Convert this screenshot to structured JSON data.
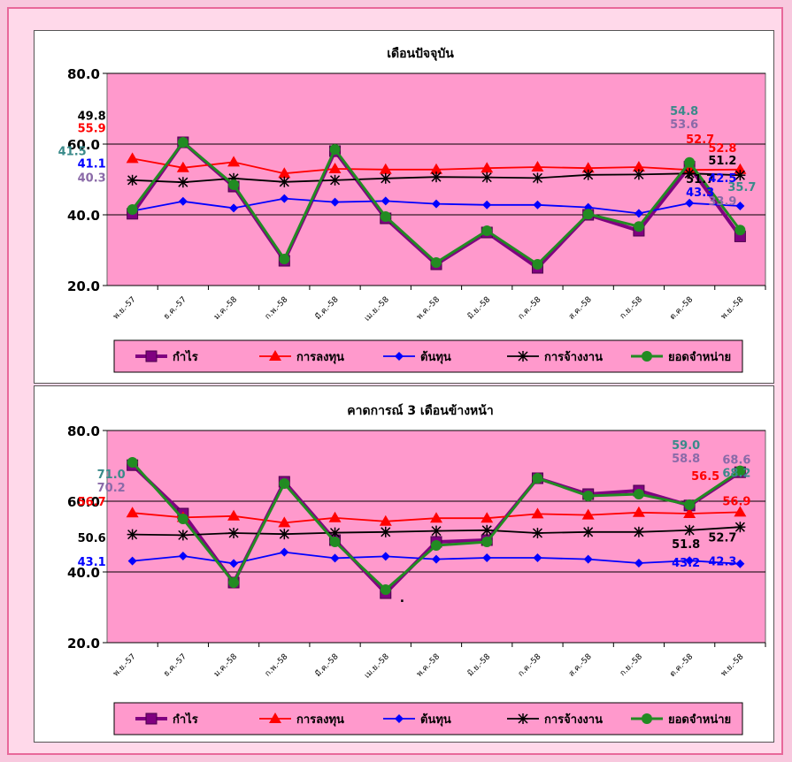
{
  "chart_data": [
    {
      "type": "line",
      "title": "เดือนปัจจุบัน",
      "categories": [
        "พ.ย.-57",
        "ธ.ค.-57",
        "ม.ค.-58",
        "ก.พ.-58",
        "มี.ค.-58",
        "เม.ย.-58",
        "พ.ค.-58",
        "มิ.ย.-58",
        "ก.ค.-58",
        "ส.ค.-58",
        "ก.ย.-58",
        "ต.ค.-58",
        "พ.ย.-58"
      ],
      "ylim": [
        20,
        80
      ],
      "yticks": [
        "20.0",
        "40.0",
        "60.0",
        "80.0"
      ],
      "legend_position": "bottom",
      "series": [
        {
          "name": "กำไร",
          "color": "#800080",
          "marker": "square",
          "values": [
            40.3,
            60.5,
            48.0,
            27.0,
            58.0,
            39.0,
            26.0,
            35.0,
            25.0,
            40.0,
            35.5,
            53.6,
            33.9
          ]
        },
        {
          "name": "การลงทุน",
          "color": "#ff0000",
          "marker": "triangle",
          "values": [
            55.9,
            53.3,
            54.9,
            51.7,
            53.0,
            52.8,
            52.8,
            53.2,
            53.5,
            53.2,
            53.5,
            52.7,
            52.8
          ]
        },
        {
          "name": "ต้นทุน",
          "color": "#0000ff",
          "marker": "diamond",
          "values": [
            41.1,
            43.8,
            41.9,
            44.6,
            43.6,
            43.9,
            43.1,
            42.8,
            42.8,
            42.1,
            40.4,
            43.3,
            42.5
          ]
        },
        {
          "name": "การจ้างงาน",
          "color": "#000000",
          "marker": "star",
          "values": [
            49.8,
            49.2,
            50.3,
            49.3,
            49.8,
            50.3,
            50.7,
            50.6,
            50.4,
            51.3,
            51.4,
            51.7,
            51.2
          ]
        },
        {
          "name": "ยอดจำหน่าย",
          "color": "#228b22",
          "marker": "circle",
          "values": [
            41.5,
            60.5,
            48.5,
            27.5,
            58.5,
            39.5,
            26.5,
            35.5,
            26.0,
            40.2,
            36.7,
            54.8,
            35.7
          ]
        }
      ],
      "labels": [
        {
          "text": "55.9",
          "color": "#ff0000"
        },
        {
          "text": "49.8",
          "color": "#000000"
        },
        {
          "text": "41.5",
          "color": "#3a8a8a"
        },
        {
          "text": "41.1",
          "color": "#0000ff"
        },
        {
          "text": "40.3",
          "color": "#8a6aa8"
        },
        {
          "text": "54.8",
          "color": "#3a8a8a"
        },
        {
          "text": "53.6",
          "color": "#8a6aa8"
        },
        {
          "text": "52.7",
          "color": "#ff0000"
        },
        {
          "text": "51.7",
          "color": "#000000"
        },
        {
          "text": "43.3",
          "color": "#0000ff"
        },
        {
          "text": "52.8",
          "color": "#ff0000"
        },
        {
          "text": "51.2",
          "color": "#000000"
        },
        {
          "text": "42.5",
          "color": "#0000ff"
        },
        {
          "text": "35.7",
          "color": "#3a8a8a"
        },
        {
          "text": "33.9",
          "color": "#8a6aa8"
        }
      ]
    },
    {
      "type": "line",
      "title": "คาดการณ์ 3 เดือนข้างหน้า",
      "categories": [
        "พ.ย.-57",
        "ธ.ค.-57",
        "ม.ค.-58",
        "ก.พ.-58",
        "มี.ค.-58",
        "เม.ย.-58",
        "พ.ค.-58",
        "มิ.ย.-58",
        "ก.ค.-58",
        "ส.ค.-58",
        "ก.ย.-58",
        "ต.ค.-58",
        "พ.ย.-58"
      ],
      "ylim": [
        20,
        80
      ],
      "yticks": [
        "20.0",
        "40.0",
        "60.0",
        "80.0"
      ],
      "legend_position": "bottom",
      "annotation": ".",
      "series": [
        {
          "name": "กำไร",
          "color": "#800080",
          "marker": "square",
          "values": [
            70.2,
            56.5,
            37.0,
            65.5,
            49.0,
            34.0,
            48.5,
            49.0,
            66.5,
            62.0,
            63.0,
            58.8,
            68.2
          ]
        },
        {
          "name": "การลงทุน",
          "color": "#ff0000",
          "marker": "triangle",
          "values": [
            56.7,
            55.4,
            55.8,
            53.9,
            55.3,
            54.3,
            55.2,
            55.2,
            56.4,
            56.1,
            56.8,
            56.5,
            56.9
          ]
        },
        {
          "name": "ต้นทุน",
          "color": "#0000ff",
          "marker": "diamond",
          "values": [
            43.1,
            44.5,
            42.4,
            45.6,
            43.9,
            44.4,
            43.6,
            44.0,
            44.0,
            43.6,
            42.5,
            43.2,
            42.3
          ]
        },
        {
          "name": "การจ้างงาน",
          "color": "#000000",
          "marker": "star",
          "values": [
            50.6,
            50.4,
            51.0,
            50.7,
            51.1,
            51.3,
            51.6,
            51.8,
            51.0,
            51.3,
            51.3,
            51.8,
            52.7
          ]
        },
        {
          "name": "ยอดจำหน่าย",
          "color": "#228b22",
          "marker": "circle",
          "values": [
            71.0,
            55.0,
            37.0,
            65.0,
            48.5,
            35.0,
            47.5,
            48.5,
            66.5,
            61.5,
            62.0,
            59.0,
            68.6
          ]
        }
      ],
      "labels": [
        {
          "text": "71.0",
          "color": "#3a8a8a"
        },
        {
          "text": "70.2",
          "color": "#8a6aa8"
        },
        {
          "text": "56.7",
          "color": "#ff0000"
        },
        {
          "text": "50.6",
          "color": "#000000"
        },
        {
          "text": "43.1",
          "color": "#0000ff"
        },
        {
          "text": "59.0",
          "color": "#3a8a8a"
        },
        {
          "text": "58.8",
          "color": "#8a6aa8"
        },
        {
          "text": "56.5",
          "color": "#ff0000"
        },
        {
          "text": "51.8",
          "color": "#000000"
        },
        {
          "text": "43.2",
          "color": "#0000ff"
        },
        {
          "text": "68.6",
          "color": "#8a6aa8"
        },
        {
          "text": "68.2",
          "color": "#3a8a8a"
        },
        {
          "text": "56.9",
          "color": "#ff0000"
        },
        {
          "text": "52.7",
          "color": "#000000"
        },
        {
          "text": "42.3",
          "color": "#0000ff"
        }
      ]
    }
  ]
}
